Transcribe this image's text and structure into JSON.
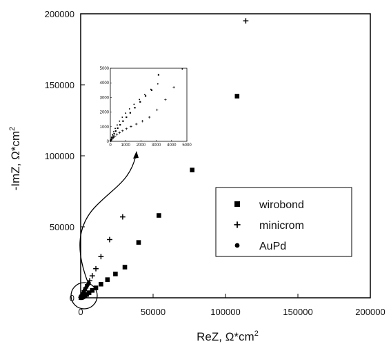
{
  "chart_data": {
    "type": "scatter",
    "xlabel": "ReZ, Ω*cm",
    "xlabel_sup": "2",
    "ylabel": "-ImZ, Ω*cm",
    "ylabel_sup": "2",
    "xlim": [
      0,
      200000
    ],
    "ylim": [
      0,
      200000
    ],
    "xticks": [
      0,
      50000,
      100000,
      150000,
      200000
    ],
    "yticks": [
      0,
      50000,
      100000,
      150000,
      200000
    ],
    "legend_position": "center-right",
    "series": [
      {
        "name": "wirobond",
        "marker": "square",
        "x": [
          200,
          600,
          1200,
          2000,
          3000,
          4200,
          5800,
          8000,
          10500,
          14000,
          18500,
          24000,
          30500,
          40000,
          54000,
          77000,
          108000
        ],
        "y": [
          100,
          300,
          600,
          1000,
          1600,
          2400,
          3600,
          5200,
          7000,
          9600,
          12800,
          16800,
          21600,
          39000,
          58000,
          90000,
          142000
        ]
      },
      {
        "name": "minicrom",
        "marker": "plus",
        "x": [
          200,
          500,
          1000,
          1700,
          2500,
          3500,
          4700,
          6200,
          8000,
          10500,
          14000,
          20000,
          29000,
          114000
        ],
        "y": [
          300,
          1000,
          2000,
          3300,
          5000,
          7000,
          9300,
          12000,
          15500,
          20500,
          29000,
          41000,
          57000,
          195000
        ]
      },
      {
        "name": "AuPd",
        "marker": "circle",
        "x": [
          100,
          250,
          450,
          700,
          1000,
          1350,
          1750,
          2200,
          2700,
          3300,
          4000,
          4800,
          5700
        ],
        "y": [
          200,
          500,
          900,
          1400,
          2000,
          2700,
          3500,
          4400,
          5400,
          6500,
          7700,
          9000,
          10400
        ]
      }
    ],
    "inset": {
      "xlim": [
        0,
        5000
      ],
      "ylim": [
        0,
        5000
      ],
      "xticks": [
        0,
        1000,
        2000,
        3000,
        4000,
        5000
      ],
      "yticks": [
        0,
        1000,
        2000,
        3000,
        4000,
        5000
      ],
      "series": [
        {
          "name": "wirobond",
          "x": [
            20,
            60,
            110,
            170,
            250,
            350,
            480,
            640,
            830,
            1050,
            1300,
            1600,
            1950,
            2300,
            2700,
            3150
          ],
          "y": [
            40,
            120,
            230,
            360,
            520,
            700,
            900,
            1130,
            1380,
            1650,
            1950,
            2300,
            2700,
            3100,
            3500,
            4550
          ]
        },
        {
          "name": "minicrom",
          "x": [
            20,
            60,
            120,
            200,
            300,
            430,
            600,
            800,
            1050,
            1350,
            1700,
            2100,
            2550,
            3050,
            3600,
            4150
          ],
          "y": [
            30,
            90,
            170,
            260,
            360,
            470,
            590,
            720,
            860,
            1010,
            1180,
            1380,
            1650,
            2150,
            2850,
            3700
          ]
        },
        {
          "name": "AuPd",
          "x": [
            10,
            40,
            80,
            140,
            220,
            320,
            450,
            600,
            780,
            1000,
            1250,
            1550,
            1900,
            2250,
            2650,
            3100,
            4700
          ],
          "y": [
            30,
            130,
            280,
            460,
            660,
            880,
            1120,
            1380,
            1650,
            1930,
            2220,
            2530,
            2860,
            3200,
            3560,
            3930,
            4950
          ]
        }
      ]
    }
  }
}
